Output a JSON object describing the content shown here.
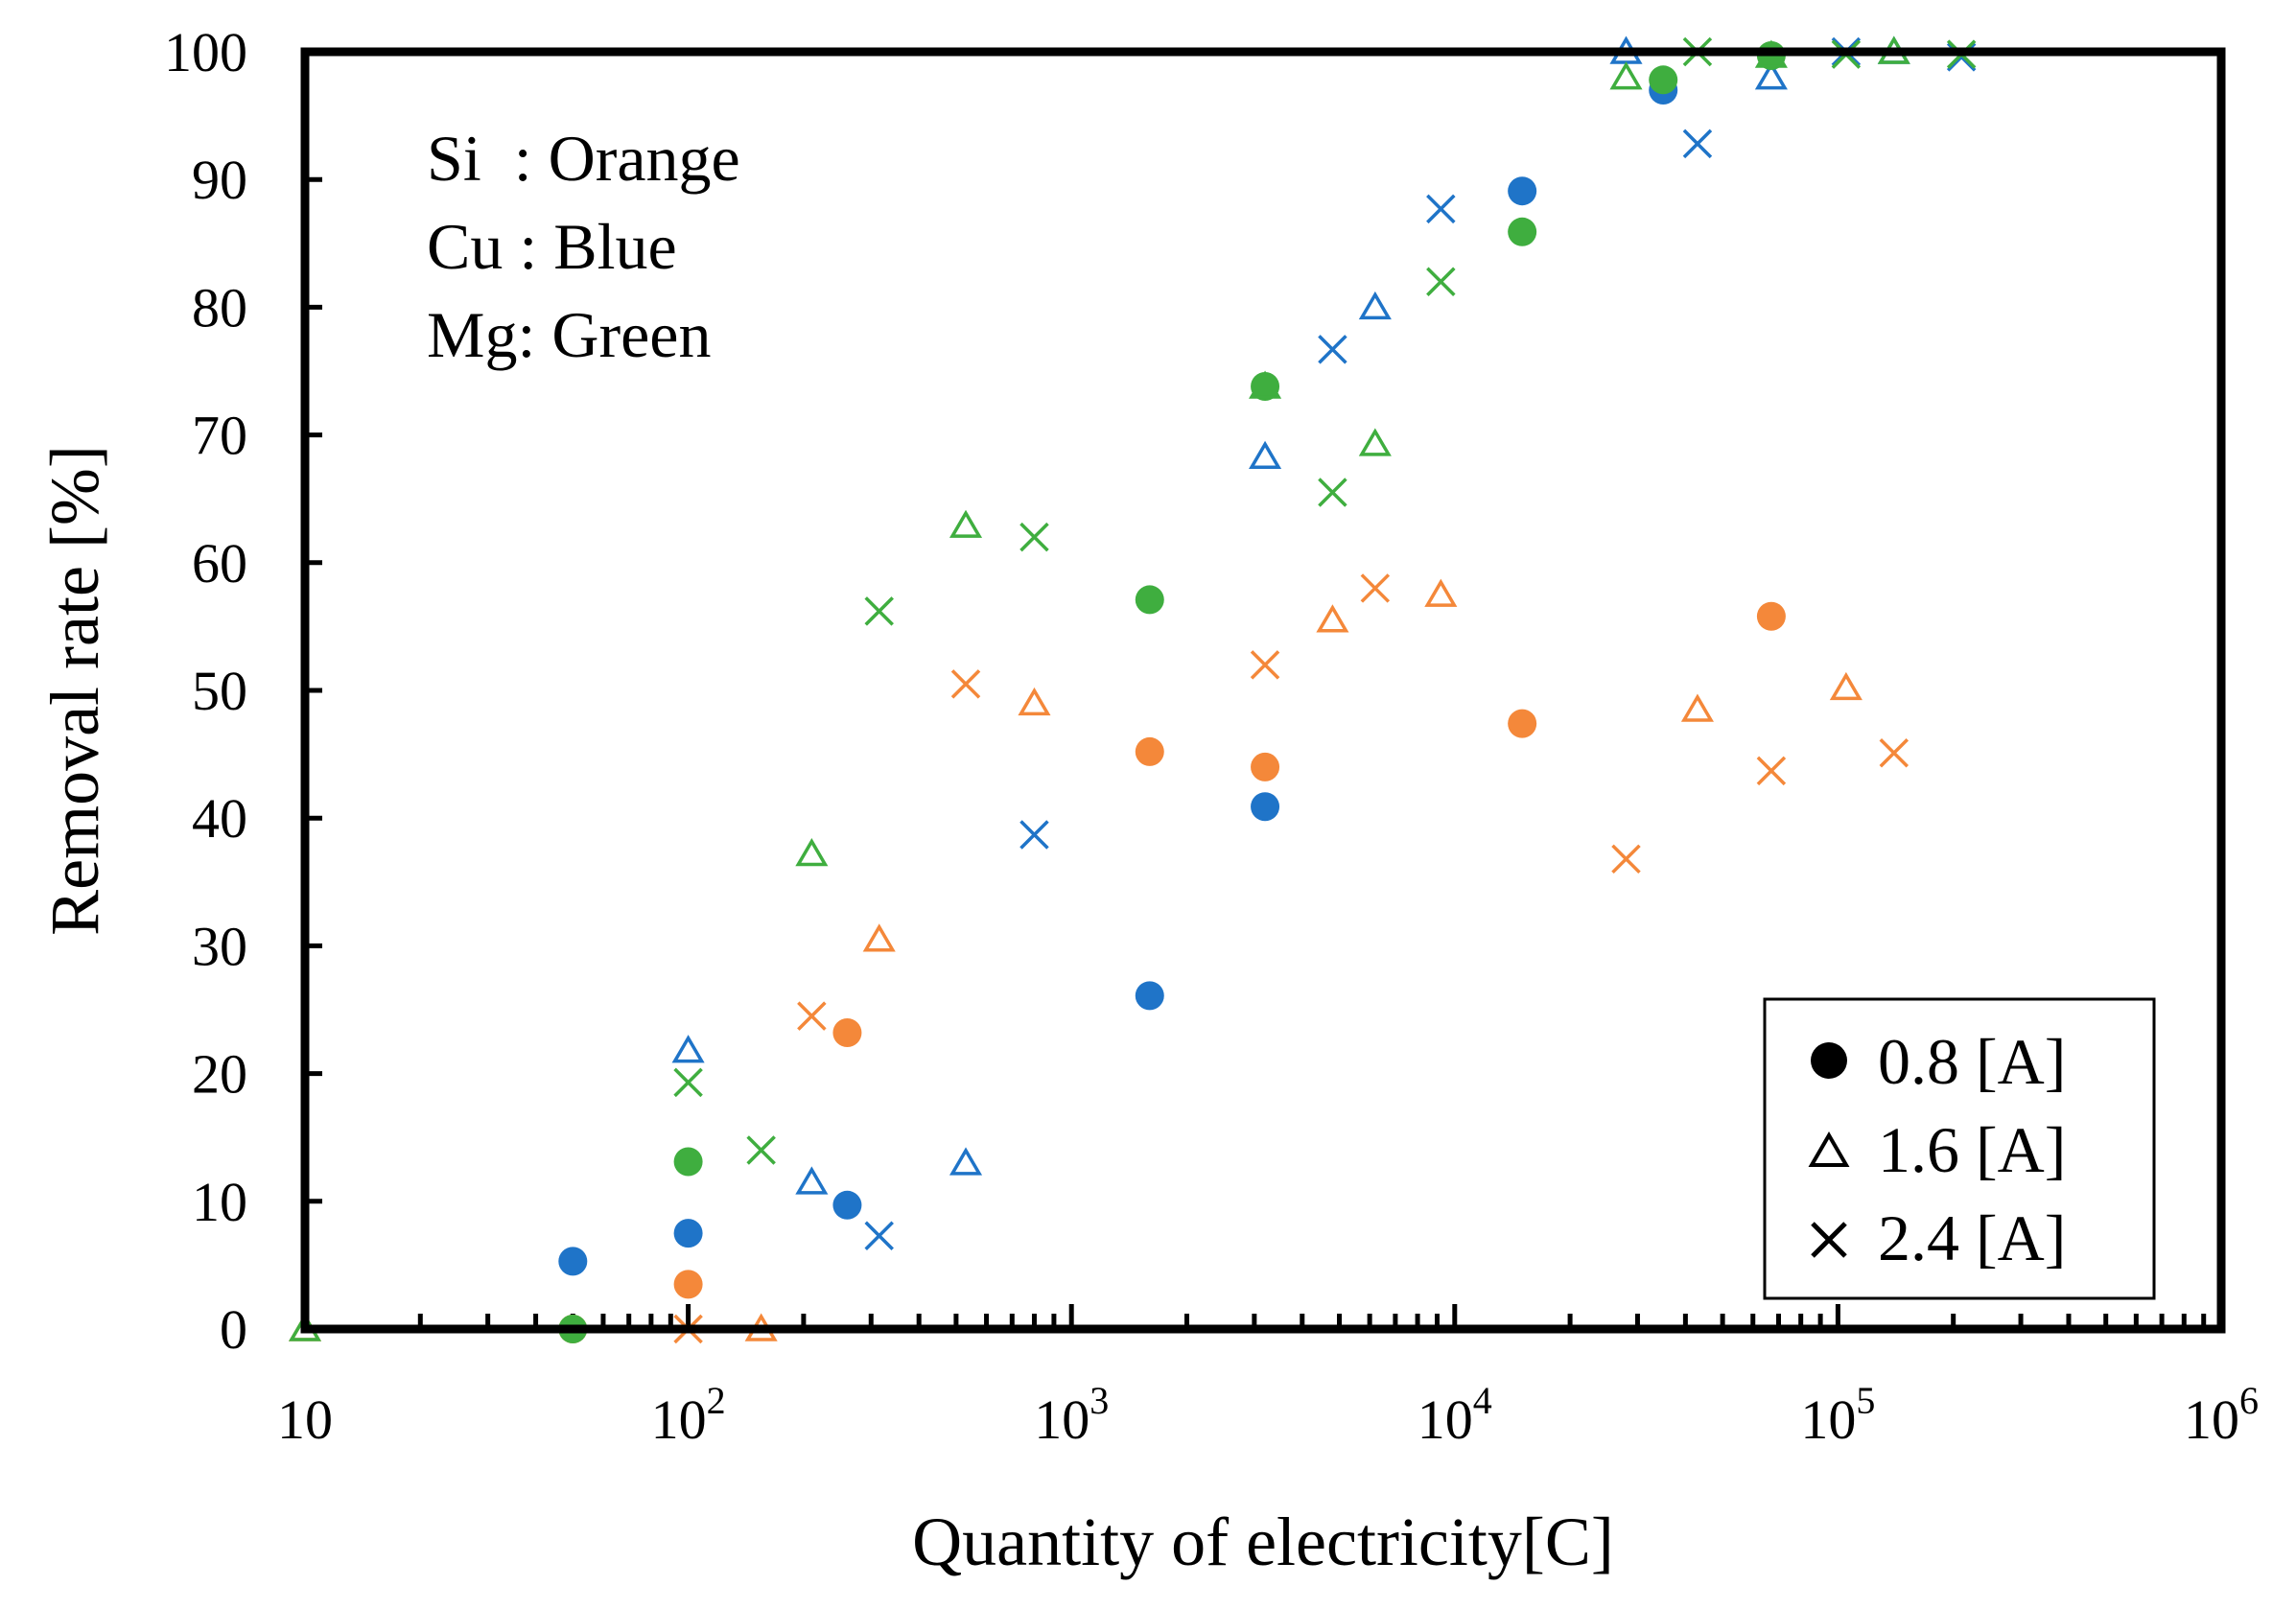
{
  "chart_data": {
    "type": "scatter",
    "title": "",
    "xlabel": "Quantity of electricity[C]",
    "ylabel": "Removal rate [%]",
    "xscale": "log",
    "xlim": [
      10,
      1000000
    ],
    "ylim": [
      0,
      100
    ],
    "x_ticks": [
      {
        "value": 10,
        "base": "10",
        "exp": ""
      },
      {
        "value": 100,
        "base": "10",
        "exp": "2"
      },
      {
        "value": 1000,
        "base": "10",
        "exp": "3"
      },
      {
        "value": 10000,
        "base": "10",
        "exp": "4"
      },
      {
        "value": 100000,
        "base": "10",
        "exp": "5"
      },
      {
        "value": 1000000,
        "base": "10",
        "exp": "6"
      }
    ],
    "y_ticks": [
      0,
      10,
      20,
      30,
      40,
      50,
      60,
      70,
      80,
      90,
      100
    ],
    "grid": false,
    "annotation_lines": [
      "Si  : Orange",
      "Cu : Blue",
      "Mg: Green"
    ],
    "legend": {
      "position": "bottom-right",
      "entries": [
        {
          "label": "0.8 [A]",
          "marker": "circle"
        },
        {
          "label": "1.6 [A]",
          "marker": "triangle"
        },
        {
          "label": "2.4 [A]",
          "marker": "cross"
        }
      ]
    },
    "colors": {
      "Si": "#f4883a",
      "Cu": "#1f74c8",
      "Mg": "#3fae3f"
    },
    "series": [
      {
        "name": "Si 0.8 [A]",
        "element": "Si",
        "current": "0.8 [A]",
        "marker": "circle",
        "points": [
          [
            50,
            0
          ],
          [
            100,
            3.5
          ],
          [
            260,
            23.2
          ],
          [
            1600,
            45.2
          ],
          [
            3200,
            44
          ],
          [
            15000,
            47.4
          ],
          [
            67000,
            55.8
          ]
        ]
      },
      {
        "name": "Si 1.6 [A]",
        "element": "Si",
        "current": "1.6 [A]",
        "marker": "triangle",
        "points": [
          [
            10,
            0
          ],
          [
            155,
            0
          ],
          [
            315,
            30.5
          ],
          [
            800,
            49
          ],
          [
            4800,
            55.5
          ],
          [
            9200,
            57.5
          ],
          [
            43000,
            48.5
          ],
          [
            105000,
            50.2
          ]
        ]
      },
      {
        "name": "Si 2.4 [A]",
        "element": "Si",
        "current": "2.4 [A]",
        "marker": "cross",
        "points": [
          [
            100,
            0
          ],
          [
            210,
            24.5
          ],
          [
            530,
            50.5
          ],
          [
            3200,
            52
          ],
          [
            6200,
            58
          ],
          [
            28000,
            36.8
          ],
          [
            67000,
            43.7
          ],
          [
            140000,
            45.1
          ]
        ]
      },
      {
        "name": "Cu 0.8 [A]",
        "element": "Cu",
        "current": "0.8 [A]",
        "marker": "circle",
        "points": [
          [
            50,
            5.3
          ],
          [
            100,
            7.5
          ],
          [
            260,
            9.7
          ],
          [
            1600,
            26.1
          ],
          [
            3200,
            40.9
          ],
          [
            15000,
            89.1
          ],
          [
            35000,
            97
          ]
        ]
      },
      {
        "name": "Cu 1.6 [A]",
        "element": "Cu",
        "current": "1.6 [A]",
        "marker": "triangle",
        "points": [
          [
            100,
            21.8
          ],
          [
            210,
            11.5
          ],
          [
            530,
            13
          ],
          [
            3200,
            68.3
          ],
          [
            6200,
            80
          ],
          [
            28000,
            100
          ],
          [
            67000,
            98
          ],
          [
            140000,
            100
          ]
        ]
      },
      {
        "name": "Cu 2.4 [A]",
        "element": "Cu",
        "current": "2.4 [A]",
        "marker": "cross",
        "points": [
          [
            315,
            7.3
          ],
          [
            800,
            38.7
          ],
          [
            4800,
            76.7
          ],
          [
            9200,
            87.7
          ],
          [
            43000,
            92.8
          ],
          [
            105000,
            100
          ],
          [
            210000,
            99.6
          ]
        ]
      },
      {
        "name": "Mg 0.8 [A]",
        "element": "Mg",
        "current": "0.8 [A]",
        "marker": "circle",
        "points": [
          [
            50,
            0
          ],
          [
            100,
            13.1
          ],
          [
            1600,
            57.1
          ],
          [
            3200,
            73.8
          ],
          [
            15000,
            85.9
          ],
          [
            35000,
            97.8
          ],
          [
            67000,
            99.7
          ]
        ]
      },
      {
        "name": "Mg 1.6 [A]",
        "element": "Mg",
        "current": "1.6 [A]",
        "marker": "triangle",
        "points": [
          [
            10,
            0
          ],
          [
            210,
            37.2
          ],
          [
            530,
            62.9
          ],
          [
            3200,
            73.8
          ],
          [
            6200,
            69.3
          ],
          [
            28000,
            98
          ],
          [
            67000,
            99.7
          ],
          [
            140000,
            100
          ]
        ]
      },
      {
        "name": "Mg 2.4 [A]",
        "element": "Mg",
        "current": "2.4 [A]",
        "marker": "cross",
        "points": [
          [
            100,
            19.3
          ],
          [
            155,
            14
          ],
          [
            315,
            56.2
          ],
          [
            800,
            62
          ],
          [
            4800,
            65.5
          ],
          [
            9200,
            82
          ],
          [
            43000,
            100
          ],
          [
            105000,
            99.8
          ],
          [
            210000,
            99.8
          ]
        ]
      }
    ]
  }
}
